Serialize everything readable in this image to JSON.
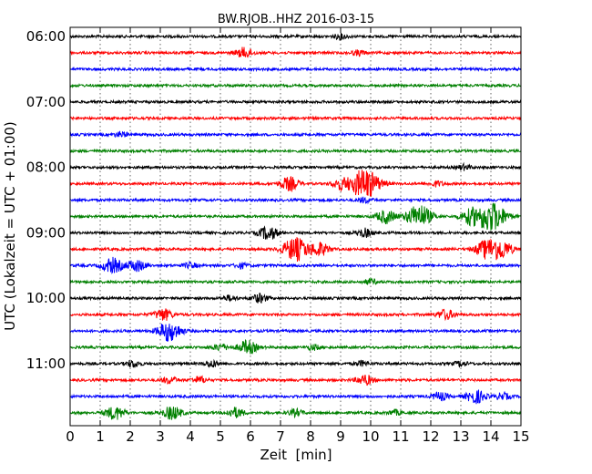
{
  "chart_data": {
    "type": "line",
    "title": "BW.RJOB..HHZ 2016-03-15",
    "xlabel": "Zeit  [min]",
    "ylabel": "UTC (Lokalzeit = UTC + 01:00)",
    "xlim": [
      0,
      15
    ],
    "x_ticks": [
      "0",
      "1",
      "2",
      "3",
      "4",
      "5",
      "6",
      "7",
      "8",
      "9",
      "10",
      "11",
      "12",
      "13",
      "14",
      "15"
    ],
    "y_ticks": [
      "06:00",
      "07:00",
      "08:00",
      "09:00",
      "10:00",
      "11:00"
    ],
    "grid": true,
    "color_cycle": [
      "#000000",
      "#ff0000",
      "#0000ff",
      "#008000"
    ],
    "series": [
      {
        "start": "06:00",
        "events": [
          [
            9.0,
            0.3
          ]
        ]
      },
      {
        "start": "06:15",
        "events": [
          [
            5.8,
            0.6
          ],
          [
            9.6,
            0.3
          ]
        ]
      },
      {
        "start": "06:30",
        "events": []
      },
      {
        "start": "06:45",
        "events": []
      },
      {
        "start": "07:00",
        "events": []
      },
      {
        "start": "07:15",
        "events": []
      },
      {
        "start": "07:30",
        "events": [
          [
            1.7,
            0.3
          ]
        ]
      },
      {
        "start": "07:45",
        "events": []
      },
      {
        "start": "08:00",
        "events": [
          [
            13.1,
            0.3
          ]
        ]
      },
      {
        "start": "08:15",
        "events": [
          [
            7.3,
            0.8
          ],
          [
            9.0,
            0.6
          ],
          [
            9.8,
            1.8
          ],
          [
            12.2,
            0.3
          ]
        ]
      },
      {
        "start": "08:30",
        "events": [
          [
            9.8,
            0.3
          ]
        ]
      },
      {
        "start": "08:45",
        "events": [
          [
            10.5,
            0.8
          ],
          [
            11.6,
            1.4
          ],
          [
            13.3,
            0.8
          ],
          [
            14.0,
            1.8
          ]
        ]
      },
      {
        "start": "09:00",
        "events": [
          [
            6.6,
            0.8
          ],
          [
            9.8,
            0.5
          ]
        ]
      },
      {
        "start": "09:15",
        "events": [
          [
            7.5,
            1.4
          ],
          [
            8.3,
            0.8
          ],
          [
            13.8,
            0.9
          ],
          [
            14.3,
            1.2
          ]
        ]
      },
      {
        "start": "09:30",
        "events": [
          [
            1.4,
            0.9
          ],
          [
            2.2,
            0.7
          ],
          [
            4.0,
            0.3
          ],
          [
            5.7,
            0.3
          ]
        ]
      },
      {
        "start": "09:45",
        "events": [
          [
            10.0,
            0.3
          ]
        ]
      },
      {
        "start": "10:00",
        "events": [
          [
            5.3,
            0.3
          ],
          [
            6.3,
            0.5
          ]
        ]
      },
      {
        "start": "10:15",
        "events": [
          [
            3.1,
            0.7
          ],
          [
            12.5,
            0.6
          ]
        ]
      },
      {
        "start": "10:30",
        "events": [
          [
            3.3,
            1.2
          ]
        ]
      },
      {
        "start": "10:45",
        "events": [
          [
            5.0,
            0.4
          ],
          [
            5.9,
            0.8
          ],
          [
            8.1,
            0.3
          ]
        ]
      },
      {
        "start": "11:00",
        "events": [
          [
            2.1,
            0.4
          ],
          [
            4.7,
            0.4
          ],
          [
            9.7,
            0.3
          ],
          [
            13.0,
            0.3
          ]
        ]
      },
      {
        "start": "11:15",
        "events": [
          [
            3.3,
            0.4
          ],
          [
            4.3,
            0.4
          ],
          [
            9.8,
            0.6
          ]
        ]
      },
      {
        "start": "11:30",
        "events": [
          [
            12.3,
            0.5
          ],
          [
            13.5,
            0.8
          ],
          [
            14.4,
            0.4
          ]
        ]
      },
      {
        "start": "11:45",
        "events": [
          [
            1.5,
            0.8
          ],
          [
            3.4,
            0.8
          ],
          [
            5.5,
            0.6
          ],
          [
            7.5,
            0.4
          ],
          [
            10.8,
            0.3
          ]
        ]
      }
    ]
  }
}
